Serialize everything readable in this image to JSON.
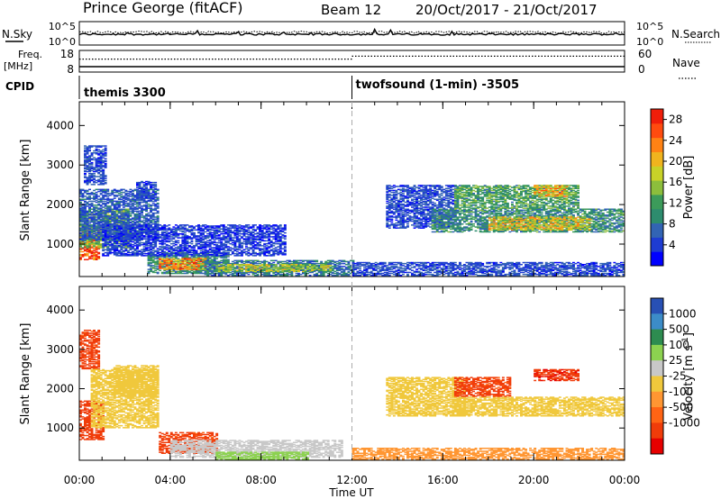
{
  "header": {
    "station": "Prince George (fitACF)",
    "beam": "Beam 12",
    "dates": "20/Oct/2017 - 21/Oct/2017"
  },
  "sky_panel": {
    "left_label": "N.Sky",
    "left_ticks": [
      "10^5",
      "10^0"
    ],
    "right_ticks": [
      "10^5",
      "10^0"
    ],
    "right_label": "N.Search"
  },
  "freq_panel": {
    "left_label_1": "Freq.",
    "left_label_2": "[MHz]",
    "left_ticks": [
      "18",
      "8"
    ],
    "right_ticks": [
      "60",
      "0"
    ],
    "right_label": "Nave",
    "freq_before_mhz": 10.5,
    "freq_after_mhz": 10.5,
    "nave_before": 36,
    "nave_after": 44,
    "switch_time_h": 12
  },
  "cpid": {
    "label": "CPID",
    "segments": [
      {
        "name": "themis 3300",
        "start_h": 0
      },
      {
        "name": "twofsound (1-min) -3505",
        "start_h": 12
      }
    ]
  },
  "chart_data": [
    {
      "type": "heatmap",
      "quantity": "power",
      "ylabel": "Slant Range [km]",
      "xlabel": "Time UT",
      "x_ticks": [
        "00:00",
        "04:00",
        "08:00",
        "12:00",
        "16:00",
        "20:00",
        "00:00"
      ],
      "xlim_hours": [
        0,
        24
      ],
      "y_ticks": [
        1000,
        2000,
        3000,
        4000
      ],
      "ylim_km": [
        180,
        4600
      ],
      "colorbar": {
        "label": "Power [dB]",
        "ticks": [
          4,
          8,
          12,
          16,
          20,
          24,
          28
        ],
        "range": [
          0,
          30
        ],
        "colors": [
          "#0000ff",
          "#1e3cd2",
          "#3264b4",
          "#2d8c6e",
          "#3c9b5a",
          "#8cbe3c",
          "#c8d228",
          "#f0b41e",
          "#ff8214",
          "#ff4b0f",
          "#f01e0a"
        ]
      },
      "regions": [
        {
          "t": [
            0.0,
            0.8
          ],
          "r": [
            600,
            1400
          ],
          "v": 27
        },
        {
          "t": [
            0.0,
            2.2
          ],
          "r": [
            900,
            1900
          ],
          "v": 14
        },
        {
          "t": [
            0.0,
            3.5
          ],
          "r": [
            1100,
            2400
          ],
          "v": 6
        },
        {
          "t": [
            0.2,
            1.2
          ],
          "r": [
            2500,
            3500
          ],
          "v": 5
        },
        {
          "t": [
            2.5,
            3.4
          ],
          "r": [
            2100,
            2600
          ],
          "v": 5
        },
        {
          "t": [
            3.0,
            6.5
          ],
          "r": [
            250,
            800
          ],
          "v": 10
        },
        {
          "t": [
            3.5,
            5.5
          ],
          "r": [
            350,
            650
          ],
          "v": 22
        },
        {
          "t": [
            5.5,
            12.0
          ],
          "r": [
            200,
            600
          ],
          "v": 8
        },
        {
          "t": [
            6.0,
            11.0
          ],
          "r": [
            300,
            500
          ],
          "v": 16
        },
        {
          "t": [
            12.0,
            24.0
          ],
          "r": [
            200,
            550
          ],
          "v": 5
        },
        {
          "t": [
            13.5,
            16.5
          ],
          "r": [
            1400,
            2500
          ],
          "v": 5
        },
        {
          "t": [
            15.5,
            24.0
          ],
          "r": [
            1300,
            1900
          ],
          "v": 10
        },
        {
          "t": [
            18.0,
            22.5
          ],
          "r": [
            1350,
            1700
          ],
          "v": 18
        },
        {
          "t": [
            16.5,
            22.0
          ],
          "r": [
            1900,
            2500
          ],
          "v": 12
        },
        {
          "t": [
            20.0,
            21.5
          ],
          "r": [
            2200,
            2500
          ],
          "v": 20
        },
        {
          "t": [
            1.0,
            9.0
          ],
          "r": [
            700,
            1500
          ],
          "v": 4
        }
      ]
    },
    {
      "type": "heatmap",
      "quantity": "velocity",
      "ylabel": "Slant Range [km]",
      "xlabel": "Time UT",
      "x_ticks": [
        "00:00",
        "04:00",
        "08:00",
        "12:00",
        "16:00",
        "20:00",
        "00:00"
      ],
      "xlim_hours": [
        0,
        24
      ],
      "y_ticks": [
        1000,
        2000,
        3000,
        4000
      ],
      "ylim_km": [
        180,
        4600
      ],
      "colorbar": {
        "label": "Velocity [m s^-1]",
        "ticks": [
          "1000",
          "500",
          "100",
          "25",
          "-25",
          "-100",
          "-500",
          "-1000"
        ],
        "colors": [
          "#2850b4",
          "#3c8cc8",
          "#2d8c50",
          "#8cd250",
          "#c8c8c8",
          "#f0c83c",
          "#ff9632",
          "#ff6414",
          "#f03c0a",
          "#e60000"
        ]
      },
      "regions": [
        {
          "t": [
            0.0,
            1.0
          ],
          "r": [
            700,
            1700
          ],
          "v": -400
        },
        {
          "t": [
            0.0,
            0.8
          ],
          "r": [
            2500,
            3500
          ],
          "v": -300
        },
        {
          "t": [
            0.5,
            3.5
          ],
          "r": [
            1000,
            2500
          ],
          "v": 0
        },
        {
          "t": [
            1.5,
            3.5
          ],
          "r": [
            1800,
            2600
          ],
          "v": 0
        },
        {
          "t": [
            3.5,
            6.0
          ],
          "r": [
            350,
            900
          ],
          "v": -300
        },
        {
          "t": [
            4.0,
            11.5
          ],
          "r": [
            250,
            700
          ],
          "v": 60
        },
        {
          "t": [
            6.0,
            10.0
          ],
          "r": [
            200,
            400
          ],
          "v": 150
        },
        {
          "t": [
            12.0,
            24.0
          ],
          "r": [
            200,
            500
          ],
          "v": -60
        },
        {
          "t": [
            13.5,
            17.0
          ],
          "r": [
            1300,
            2300
          ],
          "v": 0
        },
        {
          "t": [
            16.5,
            24.0
          ],
          "r": [
            1300,
            1800
          ],
          "v": 0
        },
        {
          "t": [
            16.5,
            19.0
          ],
          "r": [
            1800,
            2300
          ],
          "v": -300
        },
        {
          "t": [
            20.0,
            22.0
          ],
          "r": [
            2200,
            2500
          ],
          "v": -450
        }
      ]
    }
  ]
}
